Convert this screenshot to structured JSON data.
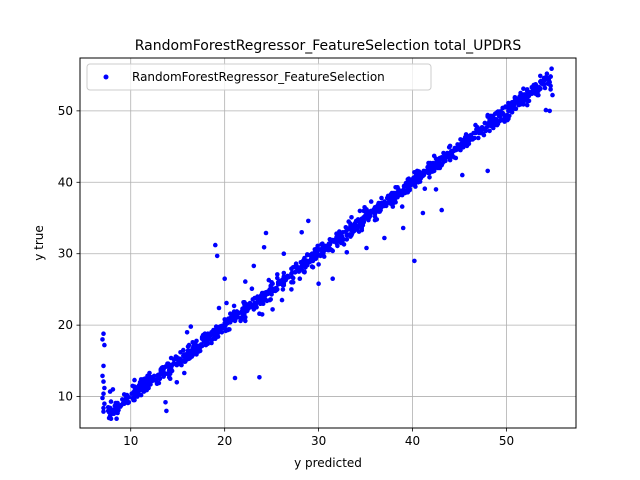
{
  "chart_data": {
    "type": "scatter",
    "title": "RandomForestRegressor_FeatureSelection total_UPDRS",
    "xlabel": "y predicted",
    "ylabel": "y true",
    "xlim": [
      4.6,
      57.4
    ],
    "ylim": [
      5.6,
      57.4
    ],
    "xticks": [
      10,
      20,
      30,
      40,
      50
    ],
    "yticks": [
      10,
      20,
      30,
      40,
      50
    ],
    "grid": true,
    "legend_position": "top-left",
    "marker_color": "#0000ff",
    "series": [
      {
        "name": "RandomForestRegressor_FeatureSelection",
        "points": []
      }
    ]
  }
}
